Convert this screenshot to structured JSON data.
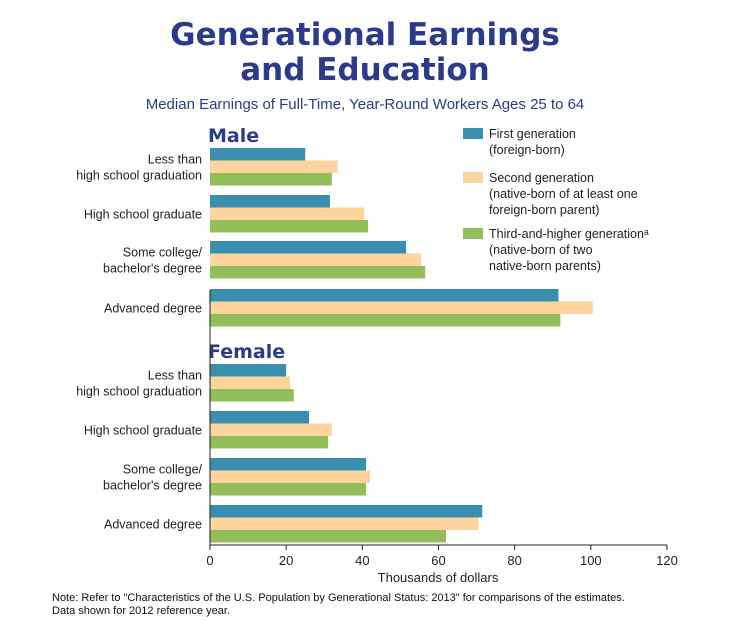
{
  "title": [
    "Generational Earnings",
    "and Education"
  ],
  "subtitle": "Median Earnings of Full-Time, Year-Round Workers Ages 25 to 64",
  "note": [
    "Note: Refer to \"Characteristics of the U.S. Population by Generational Status: 2013\" for comparisons of the estimates.",
    "Data shown for 2012 reference year."
  ],
  "colors": {
    "first": "#3a8fb0",
    "second": "#fdd49e",
    "third": "#93bf5a",
    "panel_title": "#2b3a8a"
  },
  "chart_data": {
    "type": "bar",
    "orientation": "horizontal",
    "title": "Generational Earnings and Education",
    "subtitle": "Median Earnings of Full-Time, Year-Round Workers Ages 25 to 64",
    "xlabel": "Thousands of dollars",
    "xlim": [
      0,
      120
    ],
    "xticks": [
      0,
      20,
      40,
      60,
      80,
      100,
      120
    ],
    "legend_placement": "top-right",
    "legend": [
      {
        "key": "first",
        "label": [
          "First generation",
          "(foreign-born)"
        ]
      },
      {
        "key": "second",
        "label": [
          "Second generation",
          "(native-born of at least one",
          "foreign-born parent)"
        ]
      },
      {
        "key": "third",
        "label": [
          "Third-and-higher generationᵃ",
          "(native-born of two",
          "native-born parents)"
        ]
      }
    ],
    "panels": [
      {
        "name": "Male",
        "categories": [
          [
            "Less than",
            "high school graduation"
          ],
          [
            "High school graduate"
          ],
          [
            "Some college/",
            "bachelor's degree"
          ],
          [
            "Advanced degree"
          ]
        ],
        "series": [
          {
            "key": "first",
            "values": [
              25,
              31.5,
              51.5,
              91.5
            ]
          },
          {
            "key": "second",
            "values": [
              33.5,
              40.5,
              55.5,
              100.5
            ]
          },
          {
            "key": "third",
            "values": [
              32,
              41.5,
              56.5,
              92
            ]
          }
        ]
      },
      {
        "name": "Female",
        "categories": [
          [
            "Less than",
            "high school graduation"
          ],
          [
            "High school graduate"
          ],
          [
            "Some college/",
            "bachelor's degree"
          ],
          [
            "Advanced degree"
          ]
        ],
        "series": [
          {
            "key": "first",
            "values": [
              20,
              26,
              41,
              71.5
            ]
          },
          {
            "key": "second",
            "values": [
              21,
              32,
              42,
              70.5
            ]
          },
          {
            "key": "third",
            "values": [
              22,
              31,
              41,
              62
            ]
          }
        ]
      }
    ]
  }
}
